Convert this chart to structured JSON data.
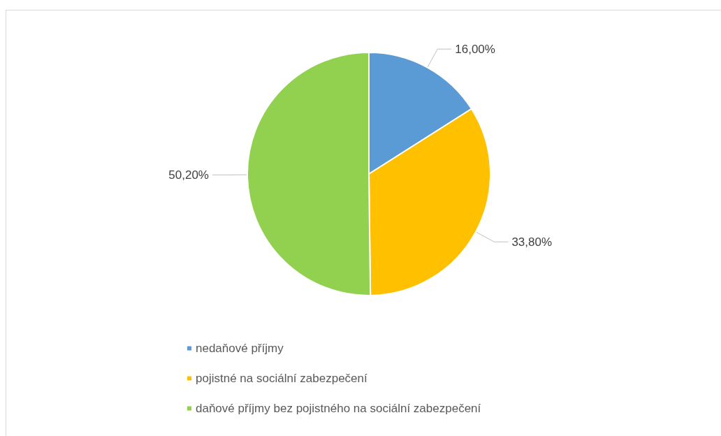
{
  "chart_data": {
    "type": "pie",
    "categories": [
      "nedaňové příjmy",
      "pojistné na sociální zabezpečení",
      "daňové příjmy bez pojistného na sociální zabezpečení"
    ],
    "values": [
      16,
      33.8,
      50.2
    ],
    "value_labels": [
      "16,00%",
      "33,80%",
      "50,20%"
    ],
    "colors": [
      "#5b9bd5",
      "#ffc000",
      "#92d050"
    ],
    "legend": "bottom"
  }
}
